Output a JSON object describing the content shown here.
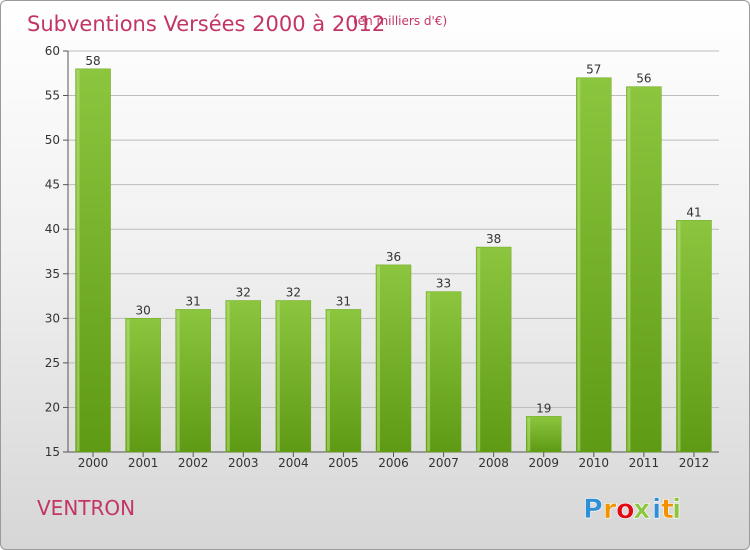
{
  "chart_data": {
    "type": "bar",
    "title": "Subventions Versées 2000 à 2012",
    "subtitle": "(en milliers d'€)",
    "categories": [
      "2000",
      "2001",
      "2002",
      "2003",
      "2004",
      "2005",
      "2006",
      "2007",
      "2008",
      "2009",
      "2010",
      "2011",
      "2012"
    ],
    "values": [
      58,
      30,
      31,
      32,
      32,
      31,
      36,
      33,
      38,
      19,
      57,
      56,
      41
    ],
    "ylim": [
      15,
      60
    ],
    "yticks": [
      15,
      20,
      25,
      30,
      35,
      40,
      45,
      50,
      55,
      60
    ],
    "grid": true,
    "bar_color": "#8cc63f",
    "bar_color_dark": "#5f9a14",
    "accent_color": "#c33563"
  },
  "commune": "VENTRON",
  "logo": {
    "text": "Proxiti",
    "letters": [
      "P",
      "r",
      "o",
      "x",
      "i",
      "t",
      "i"
    ],
    "colors": [
      "#2e8fd6",
      "#f39200",
      "#e30613",
      "#8cc63f",
      "#2e8fd6",
      "#f39200",
      "#8cc63f"
    ]
  }
}
